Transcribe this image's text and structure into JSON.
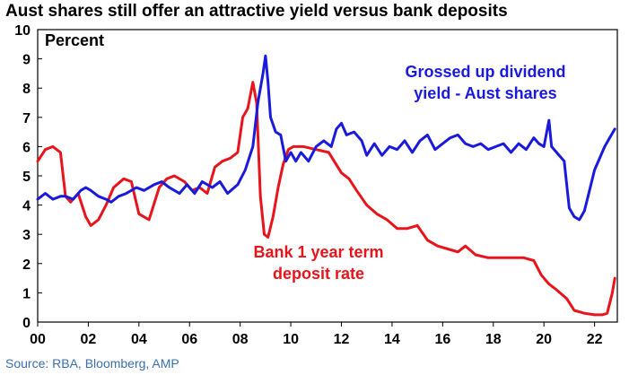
{
  "title": "Aust shares still offer an attractive yield versus bank deposits",
  "source": "Source: RBA, Bloomberg, AMP",
  "colors": {
    "dividend": "#1a1adc",
    "deposit": "#e8141c",
    "axis": "#000000"
  },
  "chart_data": {
    "type": "line",
    "title": "Aust shares still offer an attractive yield versus bank deposits",
    "unit_label": "Percent",
    "xlabel": "",
    "ylabel": "Percent",
    "xlim": [
      2000,
      2022.9
    ],
    "ylim": [
      0,
      10
    ],
    "x_ticks": [
      2000,
      2002,
      2004,
      2006,
      2008,
      2010,
      2012,
      2014,
      2016,
      2018,
      2020,
      2022
    ],
    "x_tick_labels": [
      "00",
      "02",
      "04",
      "06",
      "08",
      "10",
      "12",
      "14",
      "16",
      "18",
      "20",
      "22"
    ],
    "y_ticks": [
      0,
      1,
      2,
      3,
      4,
      5,
      6,
      7,
      8,
      9,
      10
    ],
    "grid": false,
    "series": [
      {
        "name": "Grossed up dividend yield - Aust shares",
        "color": "#1a1adc",
        "x": [
          2000,
          2000.3,
          2000.6,
          2000.9,
          2001.1,
          2001.4,
          2001.7,
          2001.9,
          2002.1,
          2002.4,
          2002.7,
          2002.9,
          2003.2,
          2003.5,
          2003.9,
          2004.2,
          2004.6,
          2004.9,
          2005.2,
          2005.6,
          2005.9,
          2006.2,
          2006.5,
          2006.9,
          2007.2,
          2007.5,
          2007.9,
          2008.2,
          2008.5,
          2008.7,
          2008.9,
          2009.0,
          2009.1,
          2009.2,
          2009.4,
          2009.6,
          2009.8,
          2010.0,
          2010.2,
          2010.4,
          2010.7,
          2011.0,
          2011.3,
          2011.6,
          2011.8,
          2012.0,
          2012.2,
          2012.5,
          2012.8,
          2013.0,
          2013.3,
          2013.6,
          2013.9,
          2014.2,
          2014.5,
          2014.8,
          2015.1,
          2015.4,
          2015.7,
          2016.0,
          2016.3,
          2016.6,
          2016.9,
          2017.2,
          2017.5,
          2017.8,
          2018.1,
          2018.4,
          2018.7,
          2019.0,
          2019.3,
          2019.6,
          2019.8,
          2020.0,
          2020.2,
          2020.3,
          2020.5,
          2020.8,
          2021.0,
          2021.2,
          2021.4,
          2021.6,
          2021.8,
          2022.0,
          2022.2,
          2022.4,
          2022.6,
          2022.8
        ],
        "y": [
          4.2,
          4.4,
          4.2,
          4.3,
          4.3,
          4.2,
          4.5,
          4.6,
          4.5,
          4.3,
          4.2,
          4.1,
          4.3,
          4.4,
          4.6,
          4.5,
          4.7,
          4.8,
          4.6,
          4.4,
          4.7,
          4.4,
          4.8,
          4.6,
          4.8,
          4.4,
          4.7,
          5.2,
          6.0,
          7.5,
          8.5,
          9.1,
          8.2,
          7.0,
          6.5,
          6.4,
          5.5,
          5.8,
          5.5,
          5.8,
          5.5,
          6.0,
          6.2,
          6.0,
          6.6,
          6.8,
          6.4,
          6.5,
          6.2,
          5.7,
          6.1,
          5.7,
          6.0,
          5.9,
          6.2,
          5.8,
          6.2,
          6.4,
          5.9,
          6.1,
          6.3,
          6.4,
          6.1,
          6.0,
          6.1,
          5.9,
          6.0,
          6.1,
          5.8,
          6.1,
          5.9,
          6.3,
          6.1,
          6.0,
          6.9,
          6.0,
          5.8,
          5.5,
          3.9,
          3.6,
          3.5,
          3.8,
          4.5,
          5.2,
          5.6,
          6.0,
          6.3,
          6.6
        ]
      },
      {
        "name": "Bank 1 year term deposit rate",
        "color": "#e8141c",
        "x": [
          2000,
          2000.3,
          2000.6,
          2000.9,
          2001.1,
          2001.3,
          2001.6,
          2001.9,
          2002.1,
          2002.4,
          2002.7,
          2003.0,
          2003.4,
          2003.7,
          2004.0,
          2004.4,
          2004.8,
          2005.1,
          2005.4,
          2005.8,
          2006.1,
          2006.4,
          2006.7,
          2007.0,
          2007.3,
          2007.6,
          2007.9,
          2008.1,
          2008.3,
          2008.5,
          2008.65,
          2008.8,
          2008.95,
          2009.1,
          2009.3,
          2009.5,
          2009.7,
          2009.9,
          2010.1,
          2010.5,
          2011.0,
          2011.5,
          2012.0,
          2012.3,
          2012.6,
          2013.0,
          2013.4,
          2013.8,
          2014.2,
          2014.6,
          2015.0,
          2015.4,
          2015.8,
          2016.2,
          2016.6,
          2016.9,
          2017.3,
          2017.8,
          2018.3,
          2018.8,
          2019.2,
          2019.6,
          2019.9,
          2020.2,
          2020.5,
          2020.9,
          2021.2,
          2021.6,
          2022.0,
          2022.3,
          2022.5,
          2022.7,
          2022.8
        ],
        "y": [
          5.5,
          5.9,
          6.0,
          5.8,
          4.3,
          4.1,
          4.4,
          3.6,
          3.3,
          3.5,
          4.0,
          4.6,
          4.9,
          4.8,
          3.7,
          3.5,
          4.6,
          4.9,
          5.0,
          4.8,
          4.5,
          4.6,
          4.4,
          5.3,
          5.5,
          5.6,
          5.8,
          7.0,
          7.3,
          8.2,
          7.5,
          4.3,
          3.0,
          2.9,
          3.6,
          4.6,
          5.4,
          5.9,
          6.0,
          6.0,
          5.9,
          5.8,
          5.1,
          4.9,
          4.5,
          4.0,
          3.7,
          3.5,
          3.2,
          3.2,
          3.3,
          2.8,
          2.6,
          2.5,
          2.4,
          2.6,
          2.3,
          2.2,
          2.2,
          2.2,
          2.2,
          2.1,
          1.6,
          1.3,
          1.1,
          0.8,
          0.4,
          0.3,
          0.25,
          0.25,
          0.3,
          1.0,
          1.5
        ]
      }
    ],
    "annotations": [
      {
        "lines": [
          "Grossed up dividend",
          "yield - Aust shares"
        ],
        "series": 0
      },
      {
        "lines": [
          "Bank 1 year term",
          "deposit rate"
        ],
        "series": 1
      }
    ]
  }
}
